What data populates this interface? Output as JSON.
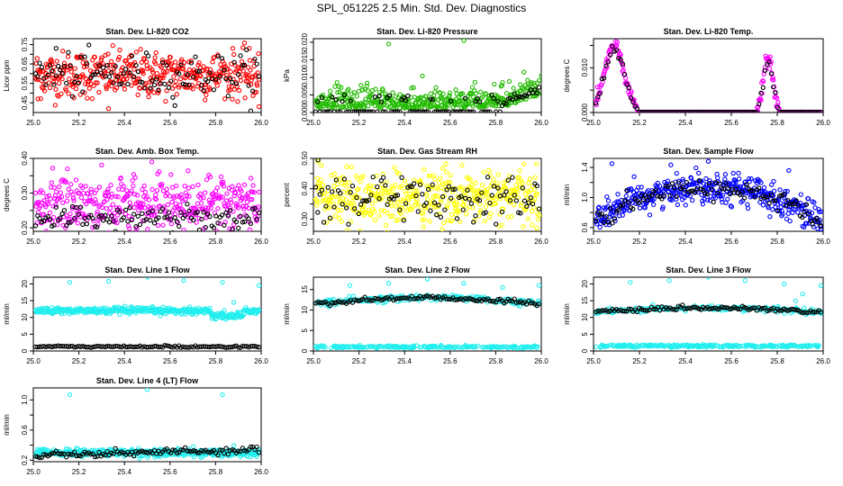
{
  "title": "SPL_051225  2.5 Min. Std. Dev. Diagnostics",
  "colors": {
    "red": "#ff0000",
    "green": "#22bb00",
    "magenta": "#ff00ff",
    "yellow": "#ffff00",
    "blue": "#0000ff",
    "cyan": "#22eeee",
    "black": "#000000"
  },
  "chart_data": [
    {
      "type": "scatter",
      "title": "Stan. Dev. Li-820 CO2",
      "ylabel": "Licor ppm",
      "xlim": [
        25.0,
        26.0
      ],
      "ylim": [
        0.4,
        0.78
      ],
      "xticks": [
        "25.0",
        "25.2",
        "25.4",
        "25.6",
        "25.8",
        "26.0"
      ],
      "yticks": [
        0.45,
        0.5,
        0.55,
        0.6,
        0.65,
        0.7,
        0.75
      ],
      "ytick_labels": [
        "0.45",
        "",
        "0.55",
        "",
        "0.65",
        "",
        "0.75"
      ],
      "series": [
        {
          "name": "main",
          "color": "red",
          "n": 420,
          "mean": 0.595,
          "sd": 0.06,
          "outliers": [
            [
              25.33,
              0.42
            ],
            [
              25.99,
              0.43
            ],
            [
              25.02,
              0.47
            ]
          ]
        },
        {
          "name": "black",
          "color": "black",
          "n": 110,
          "mean": 0.595,
          "sd": 0.055,
          "outliers": [
            [
              25.1,
              0.73
            ]
          ]
        }
      ]
    },
    {
      "type": "scatter",
      "title": "Stan. Dev. Li-820 Pressure",
      "ylabel": "kPa",
      "xlim": [
        25.0,
        26.0
      ],
      "ylim": [
        0.0,
        0.021
      ],
      "xticks": [
        "25.0",
        "25.2",
        "25.4",
        "25.6",
        "25.8",
        "26.0"
      ],
      "yticks": [
        0.0,
        0.005,
        0.01,
        0.015,
        0.02
      ],
      "ytick_labels": [
        "0.000",
        "0.005",
        "0.010",
        "0.015",
        "0.020"
      ],
      "series": [
        {
          "name": "main",
          "color": "green",
          "n": 430,
          "pattern": "pressure",
          "outliers": [
            [
              25.33,
              0.0195
            ],
            [
              25.66,
              0.0205
            ],
            [
              26.0,
              0.0105
            ]
          ]
        },
        {
          "name": "black",
          "color": "black",
          "n": 110,
          "pattern": "pressureblack",
          "outliers": []
        }
      ]
    },
    {
      "type": "scatter",
      "title": "Stan. Dev. Li-820 Temp.",
      "ylabel": "degrees C",
      "xlim": [
        25.0,
        26.0
      ],
      "ylim": [
        0.0,
        0.0165
      ],
      "xticks": [
        "25.0",
        "25.2",
        "25.4",
        "25.6",
        "25.8",
        "26.0"
      ],
      "yticks": [
        0.0,
        0.005,
        0.01,
        0.015
      ],
      "ytick_labels": [
        "0.000",
        "",
        "0.010",
        ""
      ],
      "series": [
        {
          "name": "main",
          "color": "magenta",
          "n": 400,
          "pattern": "temp",
          "outliers": []
        },
        {
          "name": "black",
          "color": "black",
          "n": 110,
          "pattern": "tempblack",
          "outliers": []
        }
      ]
    },
    {
      "type": "scatter",
      "title": "Stan. Dev. Amb. Box Temp.",
      "ylabel": "degrees C",
      "xlim": [
        25.0,
        26.0
      ],
      "ylim": [
        0.19,
        0.4
      ],
      "xticks": [
        "25.0",
        "25.2",
        "25.4",
        "25.6",
        "25.8",
        "26.0"
      ],
      "yticks": [
        0.2,
        0.25,
        0.3,
        0.35,
        0.4
      ],
      "ytick_labels": [
        "0.20",
        "",
        "0.30",
        "",
        "0.40"
      ],
      "series": [
        {
          "name": "main",
          "color": "magenta",
          "n": 420,
          "mean": 0.27,
          "sd": 0.04,
          "outliers": [
            [
              25.52,
              0.39
            ],
            [
              25.15,
              0.37
            ]
          ]
        },
        {
          "name": "black",
          "color": "black",
          "n": 110,
          "mean": 0.23,
          "sd": 0.018,
          "outliers": []
        }
      ]
    },
    {
      "type": "scatter",
      "title": "Stan. Dev. Gas Stream RH",
      "ylabel": "percent",
      "xlim": [
        25.0,
        26.0
      ],
      "ylim": [
        0.26,
        0.5
      ],
      "xticks": [
        "25.0",
        "25.2",
        "25.4",
        "25.6",
        "25.8",
        "26.0"
      ],
      "yticks": [
        0.3,
        0.35,
        0.4,
        0.45,
        0.5
      ],
      "ytick_labels": [
        "0.30",
        "",
        "0.40",
        "",
        "0.50"
      ],
      "series": [
        {
          "name": "main",
          "color": "yellow",
          "n": 430,
          "mean": 0.37,
          "sd": 0.045,
          "outliers": [
            [
              25.02,
              0.49
            ],
            [
              25.98,
              0.27
            ]
          ]
        },
        {
          "name": "black",
          "color": "black",
          "n": 110,
          "mean": 0.37,
          "sd": 0.04,
          "outliers": [
            [
              25.02,
              0.495
            ]
          ]
        }
      ]
    },
    {
      "type": "scatter",
      "title": "Stan. Dev. Sample Flow",
      "ylabel": "ml/min",
      "xlim": [
        25.0,
        26.0
      ],
      "ylim": [
        0.55,
        1.52
      ],
      "xticks": [
        "25.0",
        "25.2",
        "25.4",
        "25.6",
        "25.8",
        "26.0"
      ],
      "yticks": [
        0.6,
        0.8,
        1.0,
        1.2,
        1.4
      ],
      "ytick_labels": [
        "0.6",
        "",
        "1.0",
        "",
        "1.4"
      ],
      "series": [
        {
          "name": "main",
          "color": "blue",
          "n": 430,
          "pattern": "arc",
          "outliers": [
            [
              25.08,
              1.45
            ],
            [
              25.5,
              1.48
            ],
            [
              25.85,
              1.36
            ],
            [
              25.99,
              0.58
            ]
          ]
        },
        {
          "name": "black",
          "color": "black",
          "n": 110,
          "pattern": "arcblack",
          "outliers": []
        }
      ]
    },
    {
      "type": "scatter",
      "title": "Stan. Dev. Line 1 Flow",
      "ylabel": "ml/min",
      "xlim": [
        25.0,
        26.0
      ],
      "ylim": [
        0,
        22
      ],
      "xticks": [
        "25.0",
        "25.2",
        "25.4",
        "25.6",
        "25.8",
        "26.0"
      ],
      "yticks": [
        0,
        5,
        10,
        15,
        20
      ],
      "ytick_labels": [
        "0",
        "5",
        "10",
        "15",
        "20"
      ],
      "series": [
        {
          "name": "main",
          "color": "cyan",
          "n": 420,
          "pattern": "line1",
          "outliers": [
            [
              25.16,
              20.5
            ],
            [
              25.33,
              20.8
            ],
            [
              25.5,
              22.0
            ],
            [
              25.66,
              21.0
            ],
            [
              25.83,
              20.5
            ],
            [
              25.99,
              19.5
            ],
            [
              25.88,
              14.5
            ],
            [
              25.87,
              11
            ]
          ]
        },
        {
          "name": "black",
          "color": "black",
          "n": 110,
          "pattern": "line1black",
          "outliers": []
        }
      ]
    },
    {
      "type": "scatter",
      "title": "Stan. Dev. Line 2 Flow",
      "ylabel": "ml/min",
      "xlim": [
        25.0,
        26.0
      ],
      "ylim": [
        0,
        18
      ],
      "xticks": [
        "25.0",
        "25.2",
        "25.4",
        "25.6",
        "25.8",
        "26.0"
      ],
      "yticks": [
        0,
        5,
        10,
        15
      ],
      "ytick_labels": [
        "0",
        "5",
        "10",
        "15"
      ],
      "series": [
        {
          "name": "main",
          "color": "cyan",
          "n": 420,
          "pattern": "line2",
          "outliers": [
            [
              25.16,
              16.0
            ],
            [
              25.33,
              16.5
            ],
            [
              25.5,
              17.5
            ],
            [
              25.66,
              16.5
            ],
            [
              25.83,
              15.5
            ],
            [
              25.99,
              16.0
            ],
            [
              25.88,
              11.5
            ]
          ]
        },
        {
          "name": "black",
          "color": "black",
          "n": 110,
          "pattern": "line2black",
          "outliers": []
        }
      ]
    },
    {
      "type": "scatter",
      "title": "Stan. Dev. Line 3 Flow",
      "ylabel": "ml/min",
      "xlim": [
        25.0,
        26.0
      ],
      "ylim": [
        0,
        22
      ],
      "xticks": [
        "25.0",
        "25.2",
        "25.4",
        "25.6",
        "25.8",
        "26.0"
      ],
      "yticks": [
        0,
        5,
        10,
        15,
        20
      ],
      "ytick_labels": [
        "0",
        "5",
        "10",
        "15",
        "20"
      ],
      "series": [
        {
          "name": "main",
          "color": "cyan",
          "n": 420,
          "pattern": "line3",
          "outliers": [
            [
              25.16,
              20.5
            ],
            [
              25.33,
              21.0
            ],
            [
              25.5,
              22.0
            ],
            [
              25.66,
              21.0
            ],
            [
              25.83,
              20.0
            ],
            [
              25.99,
              19.5
            ],
            [
              25.88,
              15.0
            ],
            [
              25.91,
              17.0
            ]
          ]
        },
        {
          "name": "black",
          "color": "black",
          "n": 110,
          "pattern": "line3black",
          "outliers": []
        }
      ]
    },
    {
      "type": "scatter",
      "title": "Stan. Dev. Line 4 (LT) Flow",
      "ylabel": "ml/min",
      "xlim": [
        25.0,
        26.0
      ],
      "ylim": [
        0.18,
        1.16
      ],
      "xticks": [
        "25.0",
        "25.2",
        "25.4",
        "25.6",
        "25.8",
        "26.0"
      ],
      "yticks": [
        0.2,
        0.4,
        0.6,
        0.8,
        1.0
      ],
      "ytick_labels": [
        "0.2",
        "",
        "0.6",
        "",
        "1.0"
      ],
      "series": [
        {
          "name": "main",
          "color": "cyan",
          "n": 420,
          "pattern": "line4",
          "outliers": [
            [
              25.16,
              1.07
            ],
            [
              25.5,
              1.14
            ],
            [
              25.83,
              1.07
            ]
          ]
        },
        {
          "name": "black",
          "color": "black",
          "n": 110,
          "pattern": "line4black",
          "outliers": []
        }
      ]
    }
  ]
}
